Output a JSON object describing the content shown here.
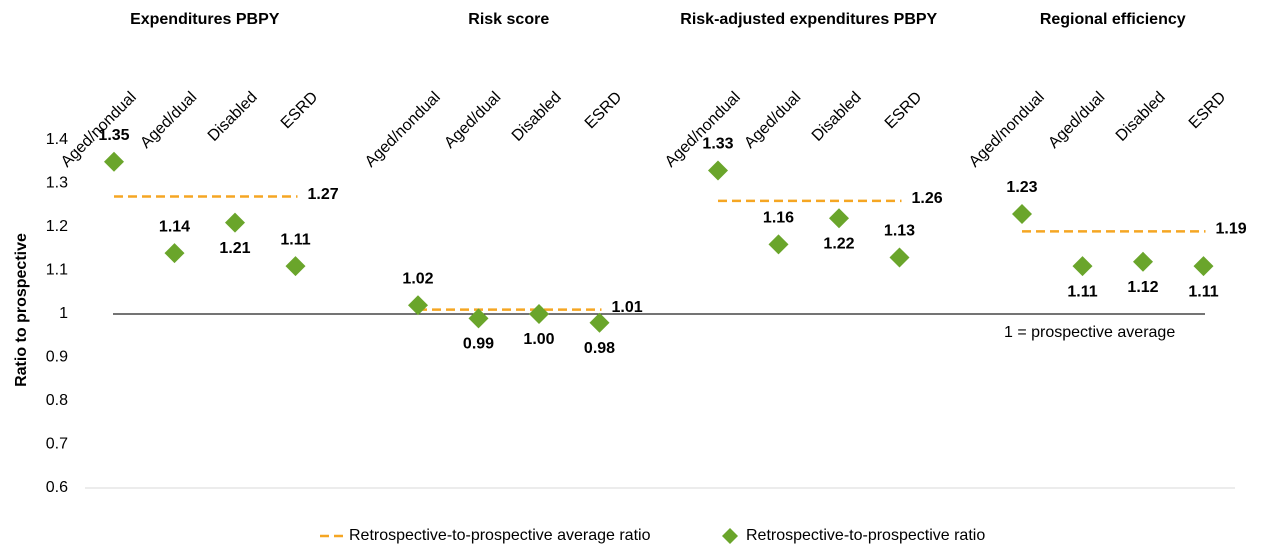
{
  "chart_data": {
    "type": "dot",
    "y_label": "Ratio to prospective",
    "ylim": [
      0.6,
      1.4
    ],
    "yticks": [
      0.6,
      0.7,
      0.8,
      0.9,
      1,
      1.1,
      1.2,
      1.3,
      1.4
    ],
    "reference_value": 1,
    "annotation": "1  = prospective average",
    "average_legend": {
      "name": "Retrospective-to-prospective average ratio",
      "color": "#f5a623"
    },
    "point_legend": {
      "name": "Retrospective-to-prospective ratio",
      "color": "#6aa52b"
    },
    "panels": [
      {
        "title": "Expenditures PBPY",
        "categories": [
          "Aged/nondual",
          "Aged/dual",
          "Disabled",
          "ESRD"
        ],
        "values": [
          1.35,
          1.14,
          1.21,
          1.11
        ],
        "value_labels": [
          "1.35",
          "1.14",
          "1.21",
          "1.11"
        ],
        "average": 1.27
      },
      {
        "title": "Risk score",
        "categories": [
          "Aged/nondual",
          "Aged/dual",
          "Disabled",
          "ESRD"
        ],
        "values": [
          1.02,
          0.99,
          1,
          0.98
        ],
        "value_labels": [
          "1.02",
          "0.99",
          "1.00",
          "0.98"
        ],
        "average": 1.01
      },
      {
        "title": "Risk-adjusted expenditures PBPY",
        "categories": [
          "Aged/nondual",
          "Aged/dual",
          "Disabled",
          "ESRD"
        ],
        "values": [
          1.33,
          1.16,
          1.22,
          1.13
        ],
        "value_labels": [
          "1.33",
          "1.16",
          "1.22",
          "1.13"
        ],
        "average": 1.26
      },
      {
        "title": "Regional efficiency",
        "categories": [
          "Aged/nondual",
          "Aged/dual",
          "Disabled",
          "ESRD"
        ],
        "values": [
          1.23,
          1.11,
          1.12,
          1.11
        ],
        "value_labels": [
          "1.23",
          "1.11",
          "1.12",
          "1.11"
        ],
        "average": 1.19
      }
    ]
  }
}
